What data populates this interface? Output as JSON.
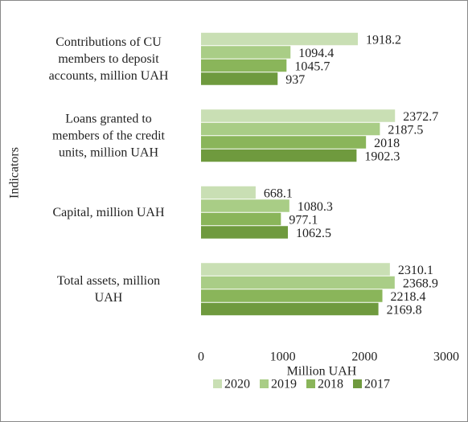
{
  "chart_data": {
    "type": "barh",
    "categories": [
      "Contributions of CU members to deposit accounts, million UAH",
      "Loans granted to members of the credit units, million UAH",
      "Capital, million UAH",
      "Total assets, million UAH"
    ],
    "series": [
      {
        "name": "2020",
        "color": "#c9dfb4",
        "values": [
          1918.2,
          2372.7,
          668.1,
          2310.1
        ]
      },
      {
        "name": "2019",
        "color": "#a9cd86",
        "values": [
          1094.4,
          2187.5,
          1080.3,
          2368.9
        ]
      },
      {
        "name": "2018",
        "color": "#8ab55a",
        "values": [
          1045.7,
          2018,
          977.1,
          2218.4
        ]
      },
      {
        "name": "2017",
        "color": "#6f9a3e",
        "values": [
          937,
          1902.3,
          1062.5,
          2169.8
        ]
      }
    ],
    "xlabel": "Million UAH",
    "ylabel": "Indicators",
    "xlim": [
      0,
      3000
    ],
    "xticks": [
      0,
      1000,
      2000,
      3000
    ],
    "legend": "bottom"
  }
}
